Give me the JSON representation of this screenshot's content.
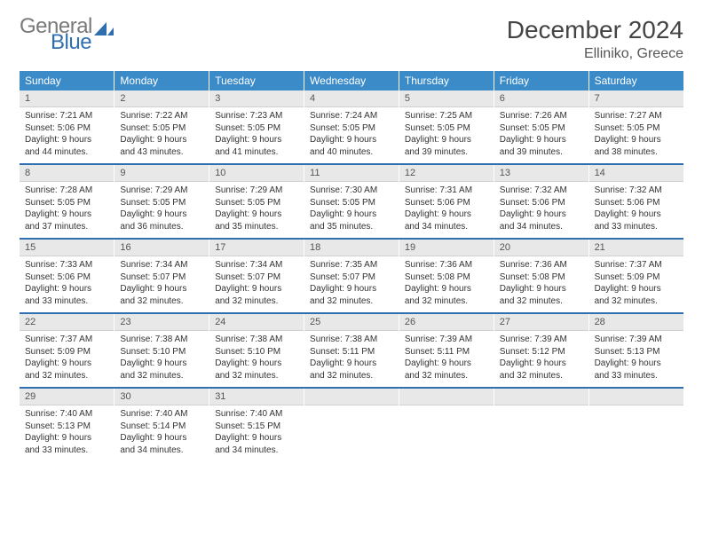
{
  "brand": {
    "word1": "General",
    "word2": "Blue",
    "gray_color": "#7a7a7a",
    "blue_color": "#2f6fb0"
  },
  "title": "December 2024",
  "location": "Elliniko, Greece",
  "colors": {
    "header_bg": "#3b8bc9",
    "rule": "#2f6fb0",
    "daynum_bg": "#e8e8e8"
  },
  "weekdays": [
    "Sunday",
    "Monday",
    "Tuesday",
    "Wednesday",
    "Thursday",
    "Friday",
    "Saturday"
  ],
  "days": [
    {
      "n": "1",
      "sunrise": "7:21 AM",
      "sunset": "5:06 PM",
      "dl": "9 hours and 44 minutes."
    },
    {
      "n": "2",
      "sunrise": "7:22 AM",
      "sunset": "5:05 PM",
      "dl": "9 hours and 43 minutes."
    },
    {
      "n": "3",
      "sunrise": "7:23 AM",
      "sunset": "5:05 PM",
      "dl": "9 hours and 41 minutes."
    },
    {
      "n": "4",
      "sunrise": "7:24 AM",
      "sunset": "5:05 PM",
      "dl": "9 hours and 40 minutes."
    },
    {
      "n": "5",
      "sunrise": "7:25 AM",
      "sunset": "5:05 PM",
      "dl": "9 hours and 39 minutes."
    },
    {
      "n": "6",
      "sunrise": "7:26 AM",
      "sunset": "5:05 PM",
      "dl": "9 hours and 39 minutes."
    },
    {
      "n": "7",
      "sunrise": "7:27 AM",
      "sunset": "5:05 PM",
      "dl": "9 hours and 38 minutes."
    },
    {
      "n": "8",
      "sunrise": "7:28 AM",
      "sunset": "5:05 PM",
      "dl": "9 hours and 37 minutes."
    },
    {
      "n": "9",
      "sunrise": "7:29 AM",
      "sunset": "5:05 PM",
      "dl": "9 hours and 36 minutes."
    },
    {
      "n": "10",
      "sunrise": "7:29 AM",
      "sunset": "5:05 PM",
      "dl": "9 hours and 35 minutes."
    },
    {
      "n": "11",
      "sunrise": "7:30 AM",
      "sunset": "5:05 PM",
      "dl": "9 hours and 35 minutes."
    },
    {
      "n": "12",
      "sunrise": "7:31 AM",
      "sunset": "5:06 PM",
      "dl": "9 hours and 34 minutes."
    },
    {
      "n": "13",
      "sunrise": "7:32 AM",
      "sunset": "5:06 PM",
      "dl": "9 hours and 34 minutes."
    },
    {
      "n": "14",
      "sunrise": "7:32 AM",
      "sunset": "5:06 PM",
      "dl": "9 hours and 33 minutes."
    },
    {
      "n": "15",
      "sunrise": "7:33 AM",
      "sunset": "5:06 PM",
      "dl": "9 hours and 33 minutes."
    },
    {
      "n": "16",
      "sunrise": "7:34 AM",
      "sunset": "5:07 PM",
      "dl": "9 hours and 32 minutes."
    },
    {
      "n": "17",
      "sunrise": "7:34 AM",
      "sunset": "5:07 PM",
      "dl": "9 hours and 32 minutes."
    },
    {
      "n": "18",
      "sunrise": "7:35 AM",
      "sunset": "5:07 PM",
      "dl": "9 hours and 32 minutes."
    },
    {
      "n": "19",
      "sunrise": "7:36 AM",
      "sunset": "5:08 PM",
      "dl": "9 hours and 32 minutes."
    },
    {
      "n": "20",
      "sunrise": "7:36 AM",
      "sunset": "5:08 PM",
      "dl": "9 hours and 32 minutes."
    },
    {
      "n": "21",
      "sunrise": "7:37 AM",
      "sunset": "5:09 PM",
      "dl": "9 hours and 32 minutes."
    },
    {
      "n": "22",
      "sunrise": "7:37 AM",
      "sunset": "5:09 PM",
      "dl": "9 hours and 32 minutes."
    },
    {
      "n": "23",
      "sunrise": "7:38 AM",
      "sunset": "5:10 PM",
      "dl": "9 hours and 32 minutes."
    },
    {
      "n": "24",
      "sunrise": "7:38 AM",
      "sunset": "5:10 PM",
      "dl": "9 hours and 32 minutes."
    },
    {
      "n": "25",
      "sunrise": "7:38 AM",
      "sunset": "5:11 PM",
      "dl": "9 hours and 32 minutes."
    },
    {
      "n": "26",
      "sunrise": "7:39 AM",
      "sunset": "5:11 PM",
      "dl": "9 hours and 32 minutes."
    },
    {
      "n": "27",
      "sunrise": "7:39 AM",
      "sunset": "5:12 PM",
      "dl": "9 hours and 32 minutes."
    },
    {
      "n": "28",
      "sunrise": "7:39 AM",
      "sunset": "5:13 PM",
      "dl": "9 hours and 33 minutes."
    },
    {
      "n": "29",
      "sunrise": "7:40 AM",
      "sunset": "5:13 PM",
      "dl": "9 hours and 33 minutes."
    },
    {
      "n": "30",
      "sunrise": "7:40 AM",
      "sunset": "5:14 PM",
      "dl": "9 hours and 34 minutes."
    },
    {
      "n": "31",
      "sunrise": "7:40 AM",
      "sunset": "5:15 PM",
      "dl": "9 hours and 34 minutes."
    }
  ],
  "labels": {
    "sunrise": "Sunrise:",
    "sunset": "Sunset:",
    "daylight": "Daylight:"
  }
}
